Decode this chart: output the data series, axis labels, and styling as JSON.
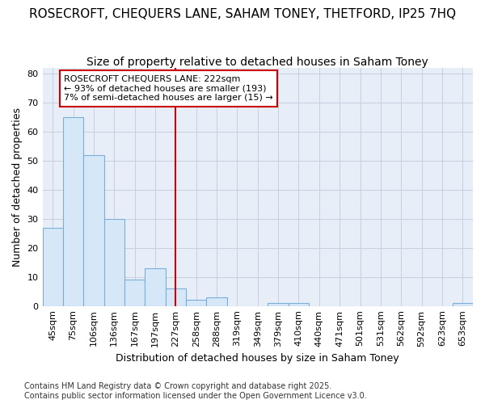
{
  "title": "ROSECROFT, CHEQUERS LANE, SAHAM TONEY, THETFORD, IP25 7HQ",
  "subtitle": "Size of property relative to detached houses in Saham Toney",
  "xlabel": "Distribution of detached houses by size in Saham Toney",
  "ylabel": "Number of detached properties",
  "categories": [
    "45sqm",
    "75sqm",
    "106sqm",
    "136sqm",
    "167sqm",
    "197sqm",
    "227sqm",
    "258sqm",
    "288sqm",
    "319sqm",
    "349sqm",
    "379sqm",
    "410sqm",
    "440sqm",
    "471sqm",
    "501sqm",
    "531sqm",
    "562sqm",
    "592sqm",
    "623sqm",
    "653sqm"
  ],
  "values": [
    27,
    65,
    52,
    30,
    9,
    13,
    6,
    2,
    3,
    0,
    0,
    1,
    1,
    0,
    0,
    0,
    0,
    0,
    0,
    0,
    1
  ],
  "bar_color": "#d6e8f7",
  "bar_edge_color": "#7ab0d8",
  "vline_x": 6,
  "vline_color": "#cc0000",
  "annotation_title": "ROSECROFT CHEQUERS LANE: 222sqm",
  "annotation_line1": "← 93% of detached houses are smaller (193)",
  "annotation_line2": "7% of semi-detached houses are larger (15) →",
  "annotation_box_color": "#cc0000",
  "annotation_box_fill": "#ffffff",
  "ylim": [
    0,
    82
  ],
  "yticks": [
    0,
    10,
    20,
    30,
    40,
    50,
    60,
    70,
    80
  ],
  "grid_color": "#c8d0e0",
  "background_color": "#ffffff",
  "plot_bg_color": "#e8eef8",
  "footer_line1": "Contains HM Land Registry data © Crown copyright and database right 2025.",
  "footer_line2": "Contains public sector information licensed under the Open Government Licence v3.0.",
  "title_fontsize": 11,
  "subtitle_fontsize": 10,
  "axis_label_fontsize": 9,
  "tick_fontsize": 8,
  "annotation_fontsize": 8,
  "footer_fontsize": 7
}
